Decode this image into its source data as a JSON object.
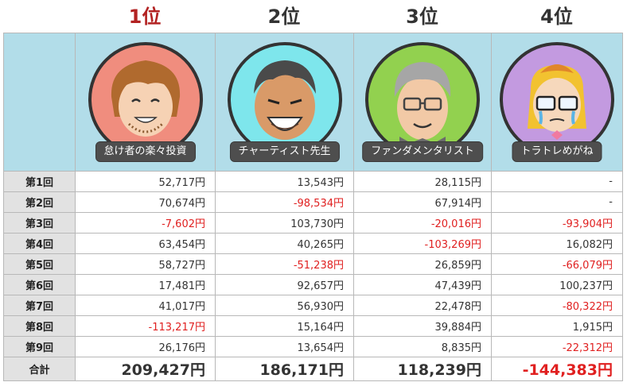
{
  "ranks": [
    "1位",
    "2位",
    "3位",
    "4位"
  ],
  "investors": [
    {
      "name": "怠け者の楽々投資",
      "avatar_icon": "lazy-investor-avatar-icon",
      "bg": "#f08d7e"
    },
    {
      "name": "チャーティスト先生",
      "avatar_icon": "chartist-avatar-icon",
      "bg": "#7ee6ec"
    },
    {
      "name": "ファンダメンタリスト",
      "avatar_icon": "fundamentalist-avatar-icon",
      "bg": "#92d14f"
    },
    {
      "name": "トラトレめがね",
      "avatar_icon": "toratore-avatar-icon",
      "bg": "#c39ae0"
    }
  ],
  "rows": [
    {
      "label": "第1回",
      "values": [
        "52,717円",
        "13,543円",
        "28,115円",
        "-"
      ]
    },
    {
      "label": "第2回",
      "values": [
        "70,674円",
        "-98,534円",
        "67,914円",
        "-"
      ]
    },
    {
      "label": "第3回",
      "values": [
        "-7,602円",
        "103,730円",
        "-20,016円",
        "-93,904円"
      ]
    },
    {
      "label": "第4回",
      "values": [
        "63,454円",
        "40,265円",
        "-103,269円",
        "16,082円"
      ]
    },
    {
      "label": "第5回",
      "values": [
        "58,727円",
        "-51,238円",
        "26,859円",
        "-66,079円"
      ]
    },
    {
      "label": "第6回",
      "values": [
        "17,481円",
        "92,657円",
        "47,439円",
        "100,237円"
      ]
    },
    {
      "label": "第7回",
      "values": [
        "41,017円",
        "56,930円",
        "22,478円",
        "-80,322円"
      ]
    },
    {
      "label": "第8回",
      "values": [
        "-113,217円",
        "15,164円",
        "39,884円",
        "1,915円"
      ]
    },
    {
      "label": "第9回",
      "values": [
        "26,176円",
        "13,654円",
        "8,835円",
        "-22,312円"
      ]
    }
  ],
  "total": {
    "label": "合計",
    "values": [
      "209,427円",
      "186,171円",
      "118,239円",
      "-144,383円"
    ]
  },
  "colors": {
    "negative": "#e02020",
    "first_rank": "#b22222",
    "header_bg": "#b2dde9",
    "label_bg": "#e2e2e2"
  }
}
